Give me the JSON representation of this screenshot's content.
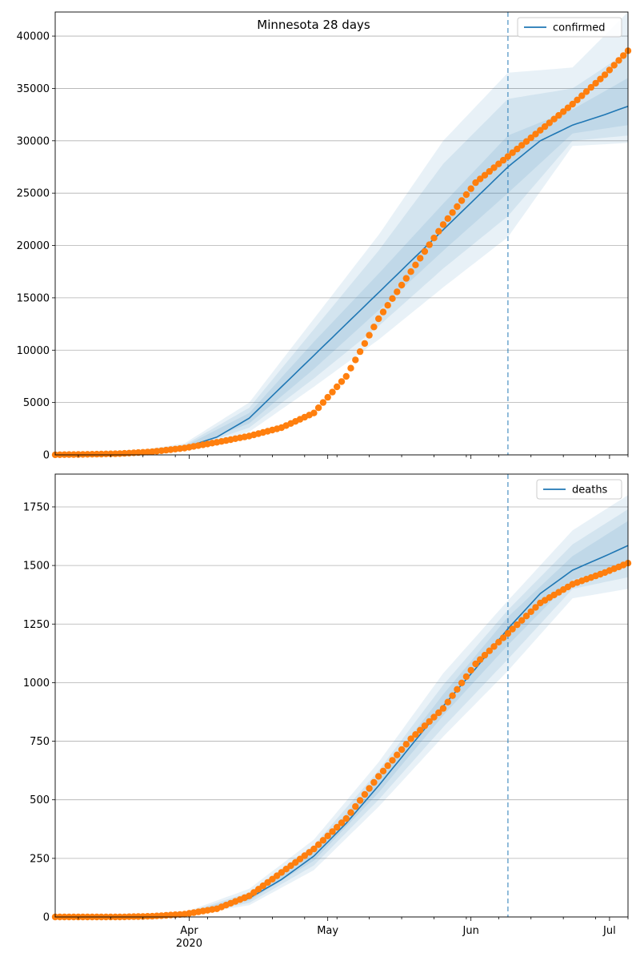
{
  "chart_data": [
    {
      "type": "line",
      "title": "Minnesota 28 days",
      "x_axis": {
        "type": "date",
        "range": [
          "2020-03-03",
          "2020-07-05"
        ],
        "tick_labels": [
          "Apr",
          "May",
          "Jun",
          "Jul"
        ],
        "tick_dates": [
          "2020-04-01",
          "2020-05-01",
          "2020-06-01",
          "2020-07-01"
        ],
        "year_label": "2020",
        "tick_labels_shown": false
      },
      "ylim": [
        0,
        42300
      ],
      "yticks": [
        0,
        5000,
        10000,
        15000,
        20000,
        25000,
        30000,
        35000,
        40000
      ],
      "grid": true,
      "legend": {
        "placement": "top-right",
        "entries": [
          "confirmed"
        ]
      },
      "forecast_start": "2020-06-09",
      "series": [
        {
          "name": "confirmed",
          "kind": "model-median",
          "color": "#1f77b4",
          "x": [
            "2020-03-03",
            "2020-03-10",
            "2020-03-17",
            "2020-03-24",
            "2020-03-31",
            "2020-04-07",
            "2020-04-14",
            "2020-04-21",
            "2020-04-28",
            "2020-05-05",
            "2020-05-12",
            "2020-05-19",
            "2020-05-26",
            "2020-06-02",
            "2020-06-09",
            "2020-06-16",
            "2020-06-23",
            "2020-06-30",
            "2020-07-05"
          ],
          "y": [
            0,
            20,
            80,
            200,
            700,
            1700,
            3500,
            6500,
            9500,
            12500,
            15500,
            18500,
            21500,
            24500,
            27500,
            30000,
            31500,
            32500,
            33300
          ]
        },
        {
          "name": "",
          "kind": "observed",
          "color": "#ff7f0e",
          "x": [
            "2020-03-03",
            "2020-03-10",
            "2020-03-17",
            "2020-03-24",
            "2020-03-31",
            "2020-04-07",
            "2020-04-14",
            "2020-04-21",
            "2020-04-28",
            "2020-05-05",
            "2020-05-12",
            "2020-05-19",
            "2020-05-26",
            "2020-06-02",
            "2020-06-09",
            "2020-06-16",
            "2020-06-23",
            "2020-06-30",
            "2020-07-05"
          ],
          "y": [
            10,
            50,
            120,
            300,
            650,
            1200,
            1800,
            2600,
            4000,
            7500,
            13000,
            17500,
            22000,
            26000,
            28500,
            31000,
            33500,
            36300,
            38600
          ]
        }
      ],
      "bands": {
        "x": [
          "2020-03-03",
          "2020-03-17",
          "2020-03-31",
          "2020-04-14",
          "2020-04-28",
          "2020-05-12",
          "2020-05-26",
          "2020-06-09",
          "2020-06-23",
          "2020-07-05"
        ],
        "median": [
          0,
          80,
          700,
          3500,
          9500,
          15500,
          21500,
          27500,
          31500,
          33300
        ],
        "levels": [
          {
            "lower": [
              0,
              40,
              400,
              2200,
              6500,
              11000,
              16000,
              20800,
              29500,
              29800
            ],
            "upper": [
              0,
              150,
              1100,
              5000,
              13000,
              21000,
              30000,
              36500,
              37000,
              42300
            ]
          },
          {
            "lower": [
              0,
              50,
              500,
              2600,
              7300,
              12300,
              17800,
              22800,
              30000,
              30500
            ],
            "upper": [
              0,
              120,
              950,
              4500,
              12000,
              19500,
              27800,
              34000,
              35000,
              38500
            ]
          },
          {
            "lower": [
              0,
              60,
              580,
              3000,
              8200,
              13800,
              19500,
              25000,
              30700,
              31500
            ],
            "upper": [
              0,
              100,
              820,
              4000,
              10800,
              17300,
              24000,
              30500,
              33000,
              36000
            ]
          }
        ]
      }
    },
    {
      "type": "line",
      "title": "",
      "x_axis": {
        "type": "date",
        "range": [
          "2020-03-03",
          "2020-07-05"
        ],
        "tick_labels": [
          "Apr",
          "May",
          "Jun",
          "Jul"
        ],
        "tick_dates": [
          "2020-04-01",
          "2020-05-01",
          "2020-06-01",
          "2020-07-01"
        ],
        "year_label": "2020",
        "tick_labels_shown": true
      },
      "ylim": [
        0,
        1890
      ],
      "yticks": [
        0,
        250,
        500,
        750,
        1000,
        1250,
        1500,
        1750
      ],
      "grid": true,
      "legend": {
        "placement": "top-right",
        "entries": [
          "deaths"
        ]
      },
      "forecast_start": "2020-06-09",
      "series": [
        {
          "name": "deaths",
          "kind": "model-median",
          "color": "#1f77b4",
          "x": [
            "2020-03-03",
            "2020-03-10",
            "2020-03-17",
            "2020-03-24",
            "2020-03-31",
            "2020-04-07",
            "2020-04-14",
            "2020-04-21",
            "2020-04-28",
            "2020-05-05",
            "2020-05-12",
            "2020-05-19",
            "2020-05-26",
            "2020-06-02",
            "2020-06-09",
            "2020-06-16",
            "2020-06-23",
            "2020-06-30",
            "2020-07-05"
          ],
          "y": [
            0,
            0,
            0,
            2,
            10,
            40,
            80,
            160,
            260,
            400,
            560,
            730,
            900,
            1060,
            1230,
            1380,
            1480,
            1540,
            1585
          ]
        },
        {
          "name": "",
          "kind": "observed",
          "color": "#ff7f0e",
          "x": [
            "2020-03-03",
            "2020-03-10",
            "2020-03-17",
            "2020-03-24",
            "2020-03-31",
            "2020-04-07",
            "2020-04-14",
            "2020-04-21",
            "2020-04-28",
            "2020-05-05",
            "2020-05-12",
            "2020-05-19",
            "2020-05-26",
            "2020-06-02",
            "2020-06-09",
            "2020-06-16",
            "2020-06-23",
            "2020-06-30",
            "2020-07-05"
          ],
          "y": [
            0,
            0,
            0,
            3,
            12,
            35,
            90,
            190,
            290,
            420,
            600,
            760,
            890,
            1080,
            1210,
            1340,
            1420,
            1470,
            1510
          ]
        }
      ],
      "bands": {
        "x": [
          "2020-03-03",
          "2020-03-17",
          "2020-03-31",
          "2020-04-14",
          "2020-04-28",
          "2020-05-12",
          "2020-05-26",
          "2020-06-09",
          "2020-06-23",
          "2020-07-05"
        ],
        "median": [
          0,
          0,
          10,
          80,
          260,
          560,
          900,
          1230,
          1480,
          1585
        ],
        "levels": [
          {
            "lower": [
              0,
              0,
              5,
              50,
              200,
              470,
              770,
              1050,
              1360,
              1400
            ],
            "upper": [
              0,
              0,
              20,
              120,
              330,
              660,
              1040,
              1350,
              1650,
              1800
            ]
          },
          {
            "lower": [
              0,
              0,
              7,
              60,
              220,
              500,
              810,
              1100,
              1400,
              1450
            ],
            "upper": [
              0,
              0,
              16,
              105,
              305,
              625,
              990,
              1310,
              1590,
              1740
            ]
          },
          {
            "lower": [
              0,
              0,
              9,
              70,
              240,
              530,
              860,
              1160,
              1440,
              1500
            ],
            "upper": [
              0,
              0,
              13,
              95,
              285,
              595,
              950,
              1280,
              1540,
              1690
            ]
          }
        ]
      }
    }
  ]
}
